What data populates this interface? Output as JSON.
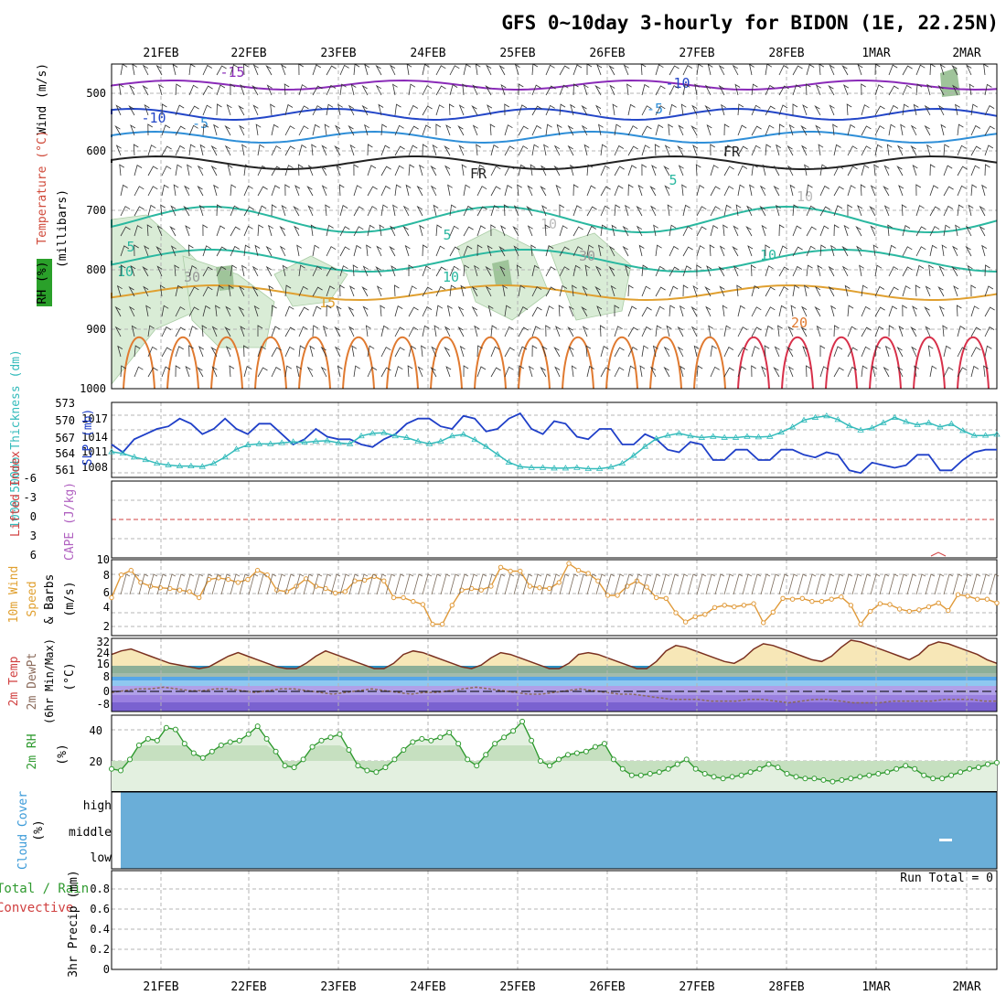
{
  "title": "GFS 0~10day 3-hourly for BIDON (1E, 22.25N)",
  "date_labels": [
    "21FEB",
    "22FEB",
    "23FEB",
    "24FEB",
    "25FEB",
    "26FEB",
    "27FEB",
    "28FEB",
    "1MAR",
    "2MAR"
  ],
  "colors": {
    "grid": "#b4b4b4",
    "temp_line": "#1a8ccc",
    "slp": "#1f3fc8",
    "thickness": "#33bbbb",
    "wind": "#e09a3a",
    "rh": "#2f9a2f",
    "cloud": "#6aaed8",
    "lifted_zero": "#d04040"
  },
  "panels": {
    "upper": {
      "label_wind": "Wind (m/s)",
      "label_temp": "Temperature (°C)",
      "label_rh": "RH (%)",
      "unit": "(millibars)",
      "levels": [
        "500",
        "600",
        "700",
        "800",
        "900",
        "1000"
      ],
      "contour_labels": [
        "-15",
        "-10",
        "-10",
        "-5",
        "-5",
        "FR",
        "FR",
        "5",
        "5",
        "5",
        "10",
        "10",
        "10",
        "15",
        "20",
        "30",
        "30",
        "10",
        "10"
      ]
    },
    "slp": {
      "label_thick": "1000-500mb Thickness (dm)",
      "label_slp": "SLP (mb)",
      "thick_ticks": [
        "573",
        "570",
        "567",
        "564",
        "561"
      ],
      "slp_ticks": [
        "1017",
        "1014",
        "1011",
        "1008"
      ]
    },
    "cape": {
      "label_li": "Lifted Index",
      "label_cape": "CAPE (J/kg)",
      "ticks": [
        "-6",
        "-3",
        "0",
        "3",
        "6"
      ]
    },
    "wind10": {
      "label1": "10m Wind",
      "label2": "Speed",
      "label3": "& Barbs",
      "unit": "(m/s)",
      "ticks": [
        "10",
        "8",
        "6",
        "4",
        "2"
      ]
    },
    "temp2m": {
      "label1": "2m Temp",
      "label2": "2m DewPt",
      "label3": "(6hr Min/Max)",
      "unit": "(°C)",
      "ticks": [
        "32",
        "24",
        "16",
        "8",
        "0",
        "-8"
      ]
    },
    "rh2m": {
      "label": "2m RH",
      "unit": "(%)",
      "ticks": [
        "40",
        "20"
      ]
    },
    "cloud": {
      "label": "Cloud Cover",
      "unit": "(%)",
      "ticks": [
        "high",
        "middle",
        "low"
      ]
    },
    "precip": {
      "label1": "Total / Rain",
      "label2": "Convective",
      "label3": "3hr Precip (mm)",
      "ticks": [
        "0.8",
        "0.6",
        "0.4",
        "0.2",
        "0"
      ],
      "run_total": "Run Total = 0"
    }
  },
  "chart_data": [
    {
      "type": "line",
      "title": "SLP (mb)",
      "x_step_hours": 3,
      "ylim": [
        1005,
        1020
      ],
      "values": [
        1013,
        1011.5,
        1014,
        1015,
        1016,
        1016.5,
        1018,
        1017,
        1015,
        1016,
        1018,
        1016,
        1015,
        1017,
        1017,
        1015,
        1013,
        1014,
        1016,
        1014.5,
        1014,
        1014,
        1013,
        1012.5,
        1014,
        1015,
        1017,
        1018,
        1018,
        1016.5,
        1016,
        1018.5,
        1018,
        1015.5,
        1016,
        1018,
        1019,
        1016,
        1015,
        1017.5,
        1017,
        1014.5,
        1014,
        1016,
        1016,
        1013,
        1013,
        1015,
        1014,
        1012,
        1011.5,
        1013.5,
        1013,
        1010,
        1010,
        1012,
        1012,
        1010,
        1010,
        1012,
        1012,
        1011,
        1010.5,
        1011.5,
        1011,
        1008,
        1007.5,
        1009.5,
        1009,
        1008.5,
        1009,
        1011,
        1011,
        1008,
        1008,
        1010,
        1011.5,
        1012,
        1012
      ]
    },
    {
      "type": "line",
      "title": "1000-500mb Thickness (dm)",
      "x_step_hours": 3,
      "ylim": [
        560,
        574
      ],
      "values": [
        564.5,
        564.2,
        563.5,
        563,
        562.3,
        562,
        561.8,
        561.8,
        561.7,
        562.3,
        563.5,
        565,
        565.8,
        566,
        566,
        566.2,
        566.4,
        566.3,
        566.5,
        566.6,
        566.2,
        566,
        567.5,
        568,
        568.1,
        567.5,
        567.2,
        566.5,
        566,
        566.5,
        567.5,
        567.8,
        566.8,
        565.5,
        564,
        562.5,
        561.7,
        561.5,
        561.5,
        561.4,
        561.4,
        561.5,
        561.3,
        561.3,
        561.6,
        562.3,
        563.8,
        565.5,
        567,
        567.6,
        568,
        567.5,
        567.2,
        567.4,
        567.2,
        567.2,
        567.4,
        567.3,
        567.4,
        568.2,
        569.2,
        570.5,
        571,
        571.3,
        570.6,
        569.4,
        568.6,
        569,
        570,
        571,
        570.2,
        569.6,
        570,
        569.2,
        569.8,
        568.5,
        567.6,
        567.6,
        567.8
      ]
    },
    {
      "type": "line",
      "title": "10m Wind Speed (m/s)",
      "x_step_hours": 3,
      "ylim": [
        0,
        10
      ],
      "values": [
        5,
        8,
        8.6,
        7,
        6.5,
        6.3,
        6.2,
        6,
        5.8,
        5,
        7.4,
        7.6,
        7.4,
        7,
        7.4,
        8.6,
        8,
        6,
        5.8,
        6.5,
        7.5,
        6.5,
        6.2,
        5.6,
        5.8,
        7.2,
        7.3,
        7.8,
        7.2,
        5,
        5,
        4.5,
        4.1,
        1.5,
        1.5,
        4,
        6,
        6.2,
        6,
        6.5,
        9,
        8.5,
        8.5,
        6.5,
        6.3,
        6.2,
        7,
        9.5,
        8.6,
        8.2,
        7.2,
        5.3,
        5.3,
        6.5,
        7.2,
        6.4,
        5,
        4.9,
        3,
        1.8,
        2.5,
        2.8,
        3.7,
        4,
        3.8,
        4,
        4.2,
        1.7,
        3.1,
        4.9,
        4.8,
        4.9,
        4.5,
        4.5,
        4.8,
        5.1,
        4,
        1.5,
        3.2,
        4.2,
        4.1,
        3.5,
        3.2,
        3.4,
        3.8,
        4.3,
        3.3,
        5.4,
        5.2,
        4.8,
        4.8,
        4.3
      ]
    },
    {
      "type": "area",
      "title": "2m RH (%)",
      "x_step_hours": 3,
      "ylim": [
        0,
        50
      ],
      "values": [
        16,
        15,
        22,
        31,
        35,
        34,
        42,
        41,
        32,
        26,
        23,
        27,
        31,
        33,
        34,
        38,
        43,
        35,
        27,
        18,
        17,
        22,
        30,
        34,
        36,
        38,
        28,
        18,
        15,
        14,
        17,
        22,
        28,
        33,
        35,
        34,
        36,
        39,
        32,
        22,
        18,
        25,
        32,
        36,
        40,
        46,
        34,
        21,
        18,
        22,
        25,
        26,
        27,
        30,
        32,
        22,
        16,
        12,
        12,
        13,
        14,
        16,
        19,
        22,
        16,
        13,
        11,
        10,
        11,
        12,
        14,
        16,
        19,
        17,
        13,
        11,
        10,
        10,
        9,
        8,
        9,
        10,
        11,
        12,
        13,
        14,
        16,
        18,
        16,
        12,
        10,
        10,
        12,
        14,
        16,
        17,
        19,
        20
      ]
    },
    {
      "type": "area",
      "title": "2m Temp (°C) 6hr Min/Max",
      "x_step_hours": 3,
      "ylim": [
        -12,
        34
      ],
      "values": [
        24,
        26,
        27,
        25,
        23,
        21,
        19,
        18,
        17,
        16,
        17,
        20,
        23,
        25,
        23,
        21,
        19,
        17,
        16,
        16,
        19,
        23,
        26,
        24,
        22,
        20,
        18,
        16,
        16,
        19,
        24,
        26,
        25,
        23,
        21,
        19,
        17,
        16,
        18,
        22,
        25,
        24,
        22,
        20,
        18,
        16,
        16,
        19,
        24,
        25,
        24,
        22,
        20,
        18,
        16,
        16,
        20,
        26,
        29,
        28,
        26,
        24,
        22,
        20,
        19,
        22,
        27,
        30,
        29,
        27,
        25,
        23,
        21,
        20,
        23,
        28,
        32,
        31,
        29,
        27,
        25,
        23,
        21,
        24,
        29,
        31,
        30,
        28,
        26,
        24,
        21,
        19
      ]
    },
    {
      "type": "line",
      "title": "2m DewPt (°C)",
      "x_step_hours": 3,
      "ylim": [
        -12,
        34
      ],
      "values": [
        -1,
        0,
        1,
        1,
        2,
        1,
        0,
        0,
        1,
        1,
        0,
        -1,
        0,
        1,
        1,
        0,
        -1,
        -2,
        -1,
        0,
        1,
        0,
        -1,
        -2,
        -1,
        -1,
        0,
        1,
        2,
        1,
        0,
        -1,
        -2,
        -2,
        -1,
        0,
        1,
        0,
        -1,
        -2,
        -2,
        -3,
        -4,
        -5,
        -5,
        -5,
        -6,
        -6,
        -6,
        -5,
        -5,
        -6,
        -7,
        -6,
        -5,
        -5,
        -6,
        -7,
        -7,
        -7,
        -6,
        -6,
        -6,
        -6,
        -5,
        -5,
        -5,
        -6,
        -6
      ]
    },
    {
      "type": "line",
      "title": "Lifted Index / CAPE",
      "ylim": [
        -6,
        6
      ],
      "values": [
        0
      ]
    },
    {
      "type": "bar",
      "title": "3hr Precip (mm)",
      "ylim": [
        0,
        0.9
      ],
      "values": [
        0
      ]
    }
  ]
}
